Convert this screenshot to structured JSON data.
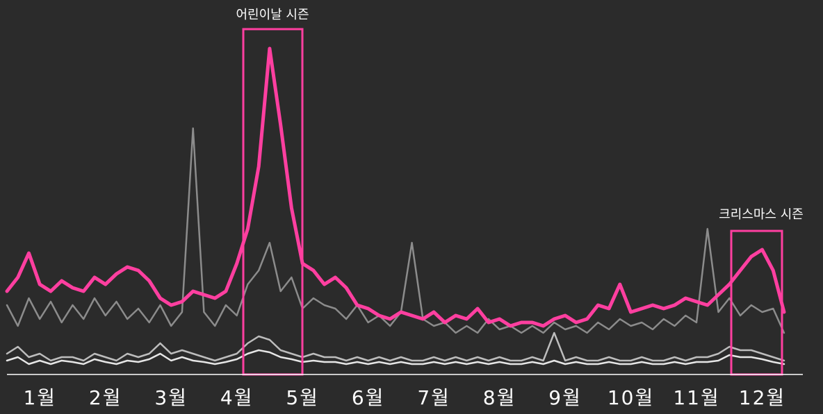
{
  "chart_data": {
    "type": "line",
    "categories": [
      "1월",
      null,
      null,
      null,
      null,
      null,
      "2월",
      null,
      null,
      null,
      null,
      null,
      "3월",
      null,
      null,
      null,
      null,
      null,
      "4월",
      null,
      null,
      null,
      null,
      null,
      "5월",
      null,
      null,
      null,
      null,
      null,
      "6월",
      null,
      null,
      null,
      null,
      null,
      "7월",
      null,
      null,
      null,
      null,
      null,
      "8월",
      null,
      null,
      null,
      null,
      null,
      "9월",
      null,
      null,
      null,
      null,
      null,
      "10월",
      null,
      null,
      null,
      null,
      null,
      "11월",
      null,
      null,
      null,
      null,
      null,
      "12월",
      null,
      null,
      null,
      null,
      null
    ],
    "series": [
      {
        "color": "#ff3fa0",
        "values": [
          120,
          140,
          175,
          130,
          120,
          135,
          125,
          120,
          140,
          130,
          145,
          155,
          150,
          135,
          110,
          100,
          105,
          120,
          115,
          110,
          120,
          160,
          210,
          300,
          470,
          360,
          240,
          160,
          150,
          130,
          140,
          125,
          100,
          95,
          85,
          80,
          90,
          85,
          80,
          90,
          75,
          85,
          80,
          95,
          75,
          80,
          70,
          75,
          75,
          70,
          80,
          85,
          75,
          80,
          100,
          95,
          130,
          90,
          95,
          100,
          95,
          100,
          110,
          105,
          100,
          115,
          130,
          150,
          170,
          180,
          150,
          90
        ]
      },
      {
        "color": "#8c8c8c",
        "values": [
          100,
          70,
          110,
          80,
          105,
          75,
          100,
          80,
          110,
          85,
          105,
          80,
          95,
          75,
          100,
          70,
          90,
          355,
          90,
          70,
          100,
          85,
          130,
          150,
          190,
          120,
          140,
          95,
          110,
          100,
          95,
          80,
          100,
          75,
          85,
          70,
          90,
          190,
          80,
          70,
          75,
          60,
          70,
          60,
          80,
          65,
          70,
          60,
          70,
          60,
          75,
          65,
          70,
          60,
          75,
          65,
          80,
          70,
          75,
          65,
          80,
          70,
          85,
          75,
          210,
          90,
          110,
          85,
          100,
          90,
          95,
          60
        ]
      },
      {
        "color": "#bdbdbd",
        "values": [
          30,
          40,
          25,
          30,
          20,
          25,
          25,
          20,
          30,
          25,
          20,
          30,
          25,
          30,
          45,
          30,
          35,
          30,
          25,
          20,
          25,
          30,
          45,
          55,
          50,
          35,
          30,
          25,
          30,
          25,
          25,
          20,
          25,
          20,
          25,
          20,
          25,
          20,
          20,
          25,
          20,
          25,
          20,
          25,
          20,
          25,
          20,
          20,
          25,
          20,
          60,
          20,
          25,
          20,
          20,
          25,
          20,
          20,
          25,
          20,
          20,
          25,
          20,
          25,
          25,
          30,
          40,
          35,
          35,
          30,
          25,
          20
        ]
      },
      {
        "color": "#e6e6e6",
        "values": [
          20,
          25,
          15,
          20,
          15,
          20,
          18,
          15,
          22,
          18,
          15,
          20,
          18,
          22,
          30,
          20,
          25,
          20,
          18,
          15,
          18,
          22,
          30,
          35,
          32,
          25,
          22,
          18,
          20,
          18,
          18,
          15,
          18,
          15,
          18,
          15,
          18,
          15,
          15,
          18,
          15,
          18,
          15,
          18,
          15,
          18,
          15,
          15,
          18,
          15,
          20,
          15,
          18,
          15,
          15,
          18,
          15,
          15,
          18,
          15,
          15,
          18,
          15,
          18,
          18,
          20,
          28,
          25,
          25,
          22,
          18,
          15
        ]
      }
    ],
    "ylim": [
      0,
      500
    ],
    "annotations": [
      "어린이날 시즌",
      "크리스마스 시즌"
    ]
  }
}
